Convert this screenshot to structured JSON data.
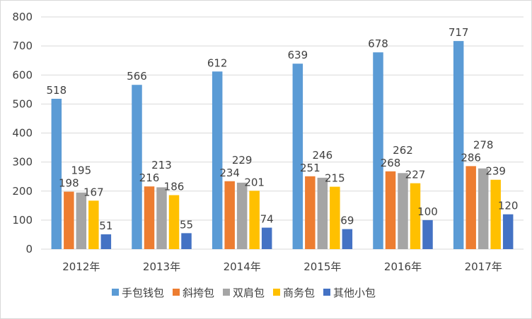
{
  "chart_data": {
    "type": "bar",
    "title": "",
    "xlabel": "",
    "ylabel": "",
    "categories": [
      "2012年",
      "2013年",
      "2014年",
      "2015年",
      "2016年",
      "2017年"
    ],
    "ylim": [
      0,
      800
    ],
    "yticks": [
      0,
      100,
      200,
      300,
      400,
      500,
      600,
      700,
      800
    ],
    "grid": true,
    "legend_position": "bottom",
    "data_labels": true,
    "series": [
      {
        "name": "手包钱包",
        "color": "#5B9BD5",
        "values": [
          518,
          566,
          612,
          639,
          678,
          717
        ]
      },
      {
        "name": "斜挎包",
        "color": "#ED7D31",
        "values": [
          198,
          216,
          234,
          251,
          268,
          286
        ]
      },
      {
        "name": "双肩包",
        "color": "#A5A5A5",
        "values": [
          195,
          213,
          229,
          246,
          262,
          278
        ]
      },
      {
        "name": "商务包",
        "color": "#FFC000",
        "values": [
          167,
          186,
          201,
          215,
          227,
          239
        ]
      },
      {
        "name": "其他小包",
        "color": "#4472C4",
        "values": [
          51,
          55,
          74,
          69,
          100,
          120
        ]
      }
    ]
  }
}
